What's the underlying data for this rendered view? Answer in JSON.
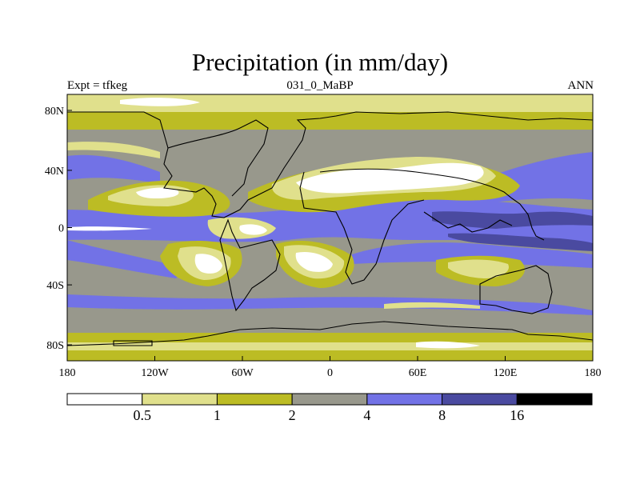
{
  "title": "Precipitation (in mm/day)",
  "experiment": "Expt = tfkeg",
  "case": "031_0_MaBP",
  "period": "ANN",
  "x_ticks": [
    "180",
    "120W",
    "60W",
    "0",
    "60E",
    "120E",
    "180"
  ],
  "y_ticks": [
    "80N",
    "40N",
    "0",
    "40S",
    "80S"
  ],
  "legend": {
    "labels": [
      "0.5",
      "1",
      "2",
      "4",
      "8",
      "16"
    ],
    "colors": [
      "#ffffff",
      "#e0e08c",
      "#bcbc24",
      "#98988c",
      "#7272e6",
      "#4a4aa0",
      "#000000"
    ]
  },
  "colors": {
    "white": "#ffffff",
    "light_yellow": "#e0e08c",
    "olive": "#bcbc24",
    "gray": "#98988c",
    "blue": "#7272e6",
    "dark_blue": "#4a4aa0",
    "coast": "#000000"
  }
}
